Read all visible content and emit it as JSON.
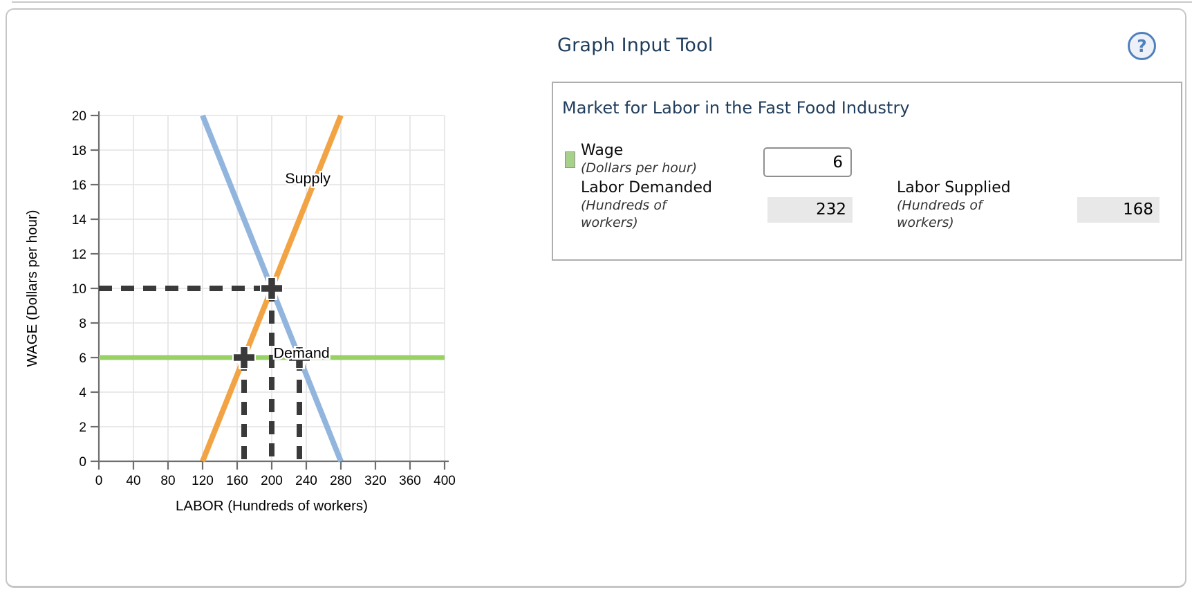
{
  "header": {
    "title": "Graph Input Tool",
    "help_glyph": "?"
  },
  "panel": {
    "title": "Market for Labor in the Fast Food Industry",
    "wage": {
      "label": "Wage",
      "sublabel": "(Dollars per hour)",
      "value": "6",
      "swatch_color": "#a7d08c"
    },
    "labor_demanded": {
      "label": "Labor Demanded",
      "sublabel": "(Hundreds of workers)",
      "value": "232"
    },
    "labor_supplied": {
      "label": "Labor Supplied",
      "sublabel": "(Hundreds of workers)",
      "value": "168"
    }
  },
  "chart_data": {
    "type": "line",
    "title": "",
    "xlabel": "LABOR (Hundreds of workers)",
    "ylabel": "WAGE (Dollars per hour)",
    "xlim": [
      0,
      400
    ],
    "ylim": [
      0,
      20
    ],
    "x_ticks": [
      0,
      40,
      80,
      120,
      160,
      200,
      240,
      280,
      320,
      360,
      400
    ],
    "y_ticks": [
      0,
      2,
      4,
      6,
      8,
      10,
      12,
      14,
      16,
      18,
      20
    ],
    "grid": true,
    "legend_position": "inline-labels",
    "style": {
      "grid_color": "#e6e6e6",
      "axis_color": "#6e6e6e"
    },
    "series": [
      {
        "name": "Demand",
        "color": "#92b5de",
        "width": 8,
        "points": [
          [
            120,
            20
          ],
          [
            280,
            0
          ]
        ],
        "label_pos": [
          202,
          6.3
        ],
        "label_anchor": "start"
      },
      {
        "name": "Supply",
        "color": "#f2a444",
        "width": 8,
        "points": [
          [
            120,
            0
          ],
          [
            280,
            20
          ]
        ],
        "label_pos": [
          268,
          16.4
        ],
        "label_anchor": "end"
      },
      {
        "name": "Wage",
        "color": "#98d264",
        "width": 7,
        "points": [
          [
            0,
            6
          ],
          [
            400,
            6
          ]
        ],
        "draggable": true
      }
    ],
    "guides": {
      "color": "#3a3a3a",
      "width": 8,
      "dash": [
        19,
        13
      ],
      "segments": [
        [
          [
            0,
            10
          ],
          [
            200,
            10
          ]
        ],
        [
          [
            200,
            10
          ],
          [
            200,
            0
          ]
        ],
        [
          [
            168,
            6
          ],
          [
            168,
            0
          ]
        ],
        [
          [
            232,
            6
          ],
          [
            232,
            0
          ]
        ]
      ],
      "markers": [
        [
          200,
          10
        ],
        [
          168,
          6
        ],
        [
          232,
          6
        ]
      ]
    },
    "readings": {
      "equilibrium_labor": 200,
      "equilibrium_wage": 10,
      "labor_demanded_at_wage": 232,
      "labor_supplied_at_wage": 168,
      "current_wage": 6
    }
  }
}
